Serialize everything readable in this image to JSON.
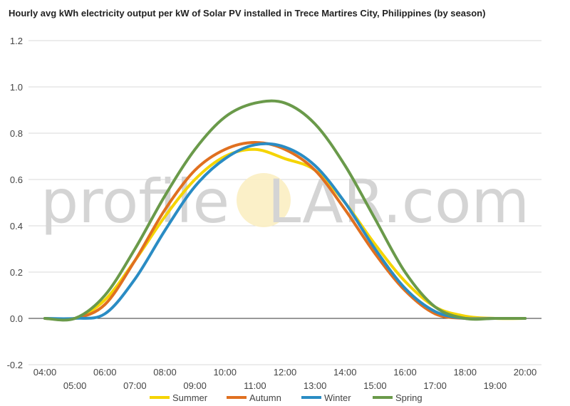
{
  "chart_data": {
    "type": "line",
    "title": "Hourly avg kWh electricity output per kW of Solar PV installed in Trece Martires City, Philippines (by season)",
    "xlabel": "",
    "ylabel": "",
    "ylim": [
      -0.2,
      1.2
    ],
    "yticks": [
      "-0.2",
      "0.0",
      "0.2",
      "0.4",
      "0.6",
      "0.8",
      "1.0",
      "1.2"
    ],
    "x": [
      "04:00",
      "05:00",
      "06:00",
      "07:00",
      "08:00",
      "09:00",
      "10:00",
      "11:00",
      "12:00",
      "13:00",
      "14:00",
      "15:00",
      "16:00",
      "17:00",
      "18:00",
      "19:00",
      "20:00"
    ],
    "grid": true,
    "legend": "bottom",
    "watermark": {
      "part1": "profile",
      "part2": "S",
      "part3": "LAR.com"
    },
    "series": [
      {
        "name": "Summer",
        "color": "#f5d400",
        "values": [
          0,
          0,
          0.08,
          0.25,
          0.44,
          0.6,
          0.7,
          0.73,
          0.69,
          0.64,
          0.5,
          0.32,
          0.16,
          0.05,
          0.01,
          0,
          0
        ]
      },
      {
        "name": "Autumn",
        "color": "#e07020",
        "values": [
          0,
          0,
          0.06,
          0.25,
          0.47,
          0.64,
          0.73,
          0.76,
          0.73,
          0.64,
          0.47,
          0.28,
          0.12,
          0.02,
          0,
          0,
          0
        ]
      },
      {
        "name": "Winter",
        "color": "#2a8cc4",
        "values": [
          0,
          0,
          0.02,
          0.17,
          0.38,
          0.57,
          0.69,
          0.75,
          0.74,
          0.66,
          0.5,
          0.3,
          0.13,
          0.03,
          0,
          0,
          0
        ]
      },
      {
        "name": "Spring",
        "color": "#6a9a4a",
        "values": [
          0,
          0,
          0.1,
          0.3,
          0.53,
          0.73,
          0.87,
          0.93,
          0.93,
          0.84,
          0.66,
          0.43,
          0.2,
          0.05,
          0,
          0,
          0
        ]
      }
    ]
  }
}
